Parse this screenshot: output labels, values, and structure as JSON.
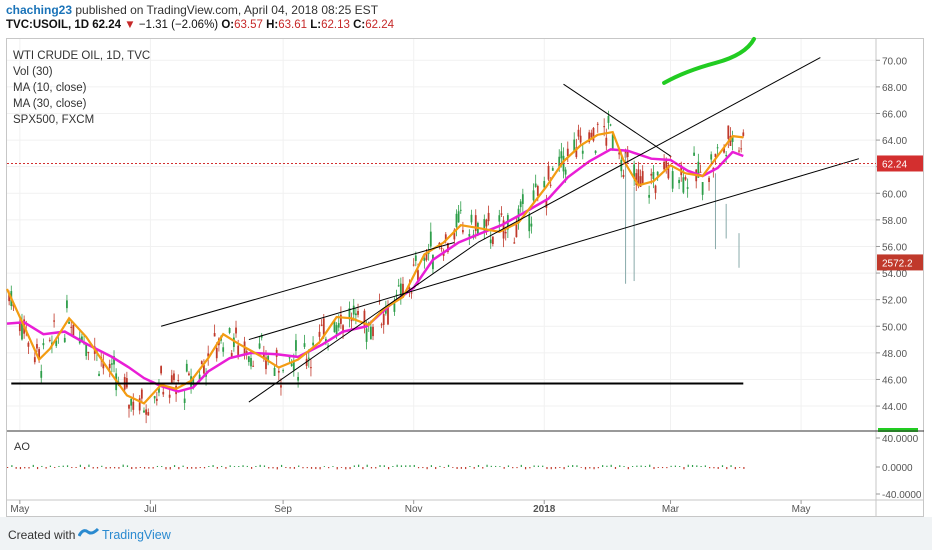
{
  "header": {
    "user": "chaching23",
    "published_text": "published on TradingView.com, April 04, 2018 08:25 EST",
    "symbol": "TVC:USOIL, 1D",
    "last": "62.24",
    "change": "−1.31 (−2.06%)",
    "o_label": "O:",
    "o": "63.57",
    "h_label": "H:",
    "h": "63.61",
    "l_label": "L:",
    "l": "62.13",
    "c_label": "C:",
    "c": "62.24"
  },
  "legend": [
    "WTI CRUDE OIL, 1D, TVC",
    "Vol (30)",
    "MA (10, close)",
    "MA (30, close)",
    "SPX500, FXCM"
  ],
  "footer": {
    "created": "Created with",
    "brand": "TradingView"
  },
  "colors": {
    "ma10": "#f39c12",
    "ma30": "#e91ed6",
    "up": "#2e9e4a",
    "down": "#c0392b",
    "price_line": "#d32f2f",
    "drawing": "#000000",
    "green_mark": "#22cc22"
  },
  "chart_data": {
    "type": "candlestick",
    "title": "WTI CRUDE OIL, 1D, TVC",
    "y_ticks": [
      "70.00",
      "68.00",
      "66.00",
      "64.00",
      "62.00",
      "60.00",
      "58.00",
      "56.00",
      "54.00",
      "52.00",
      "50.00",
      "48.00",
      "46.00",
      "44.00"
    ],
    "y_range": [
      42.2,
      71.6
    ],
    "x_ticks": [
      "May",
      "Jul",
      "Sep",
      "Nov",
      "2018",
      "Mar",
      "May"
    ],
    "x_range": [
      "2017-04-25",
      "2018-06-05"
    ],
    "last_price_label": "62.24",
    "spx_label": "2572.2",
    "ma10": [
      [
        "2017-04-25",
        52.8
      ],
      [
        "2017-05-03",
        50.0
      ],
      [
        "2017-05-10",
        47.5
      ],
      [
        "2017-05-15",
        48.3
      ],
      [
        "2017-05-24",
        50.6
      ],
      [
        "2017-06-01",
        49.2
      ],
      [
        "2017-06-12",
        46.6
      ],
      [
        "2017-06-20",
        44.8
      ],
      [
        "2017-06-28",
        44.2
      ],
      [
        "2017-07-06",
        45.6
      ],
      [
        "2017-07-13",
        45.3
      ],
      [
        "2017-07-20",
        45.9
      ],
      [
        "2017-07-28",
        47.6
      ],
      [
        "2017-08-04",
        49.4
      ],
      [
        "2017-08-11",
        48.7
      ],
      [
        "2017-08-21",
        47.8
      ],
      [
        "2017-08-30",
        46.9
      ],
      [
        "2017-09-08",
        47.5
      ],
      [
        "2017-09-18",
        48.8
      ],
      [
        "2017-09-26",
        50.7
      ],
      [
        "2017-10-03",
        50.6
      ],
      [
        "2017-10-11",
        50.1
      ],
      [
        "2017-10-18",
        51.3
      ],
      [
        "2017-10-27",
        52.2
      ],
      [
        "2017-11-06",
        55.4
      ],
      [
        "2017-11-15",
        56.3
      ],
      [
        "2017-11-23",
        57.6
      ],
      [
        "2017-12-01",
        57.4
      ],
      [
        "2017-12-11",
        57.1
      ],
      [
        "2017-12-20",
        57.8
      ],
      [
        "2018-01-02",
        60.5
      ],
      [
        "2018-01-10",
        62.4
      ],
      [
        "2018-01-18",
        63.6
      ],
      [
        "2018-01-26",
        64.4
      ],
      [
        "2018-02-02",
        64.6
      ],
      [
        "2018-02-07",
        62.5
      ],
      [
        "2018-02-14",
        60.6
      ],
      [
        "2018-02-21",
        60.9
      ],
      [
        "2018-03-01",
        62.1
      ],
      [
        "2018-03-08",
        61.5
      ],
      [
        "2018-03-16",
        61.3
      ],
      [
        "2018-03-23",
        62.8
      ],
      [
        "2018-03-30",
        64.3
      ],
      [
        "2018-04-04",
        64.2
      ]
    ],
    "ma30": [
      [
        "2017-04-25",
        50.2
      ],
      [
        "2017-05-03",
        50.3
      ],
      [
        "2017-05-12",
        49.4
      ],
      [
        "2017-05-22",
        49.6
      ],
      [
        "2017-06-02",
        48.6
      ],
      [
        "2017-06-13",
        47.7
      ],
      [
        "2017-06-21",
        46.9
      ],
      [
        "2017-06-28",
        46.1
      ],
      [
        "2017-07-06",
        45.5
      ],
      [
        "2017-07-14",
        45.1
      ],
      [
        "2017-07-21",
        45.4
      ],
      [
        "2017-07-28",
        46.6
      ],
      [
        "2017-08-07",
        47.6
      ],
      [
        "2017-08-17",
        48.0
      ],
      [
        "2017-08-29",
        47.9
      ],
      [
        "2017-09-08",
        47.7
      ],
      [
        "2017-09-19",
        48.6
      ],
      [
        "2017-09-29",
        49.6
      ],
      [
        "2017-10-10",
        50.0
      ],
      [
        "2017-10-21",
        51.6
      ],
      [
        "2017-11-01",
        52.9
      ],
      [
        "2017-11-10",
        55.0
      ],
      [
        "2017-11-22",
        56.3
      ],
      [
        "2017-12-01",
        56.9
      ],
      [
        "2017-12-12",
        57.6
      ],
      [
        "2017-12-21",
        58.4
      ],
      [
        "2018-01-03",
        59.6
      ],
      [
        "2018-01-12",
        61.2
      ],
      [
        "2018-01-22",
        62.4
      ],
      [
        "2018-02-01",
        63.3
      ],
      [
        "2018-02-09",
        63.2
      ],
      [
        "2018-02-20",
        62.6
      ],
      [
        "2018-03-01",
        62.5
      ],
      [
        "2018-03-09",
        61.7
      ],
      [
        "2018-03-16",
        61.3
      ],
      [
        "2018-03-23",
        61.9
      ],
      [
        "2018-03-30",
        63.1
      ],
      [
        "2018-04-04",
        62.8
      ]
    ],
    "candles_sample_ohlc": [
      [
        "2017-04-27",
        52.2,
        52.6,
        51.6,
        51.9
      ],
      [
        "2017-05-10",
        47.6,
        48.6,
        47.1,
        48.3
      ],
      [
        "2017-06-21",
        43.8,
        44.5,
        42.4,
        43.1
      ],
      [
        "2017-08-01",
        49.8,
        50.4,
        48.9,
        49.2
      ],
      [
        "2017-11-06",
        56.8,
        57.6,
        56.3,
        57.2
      ],
      [
        "2018-01-25",
        65.6,
        66.4,
        64.9,
        65.9
      ],
      [
        "2018-02-09",
        60.9,
        61.7,
        58.3,
        58.9
      ],
      [
        "2018-03-26",
        65.9,
        66.6,
        64.7,
        65.4
      ],
      [
        "2018-04-04",
        63.57,
        63.61,
        62.13,
        62.24
      ]
    ],
    "ao_ticks": [
      "40.0000",
      "0.0000",
      "-40.0000"
    ],
    "ao_label": "AO"
  }
}
